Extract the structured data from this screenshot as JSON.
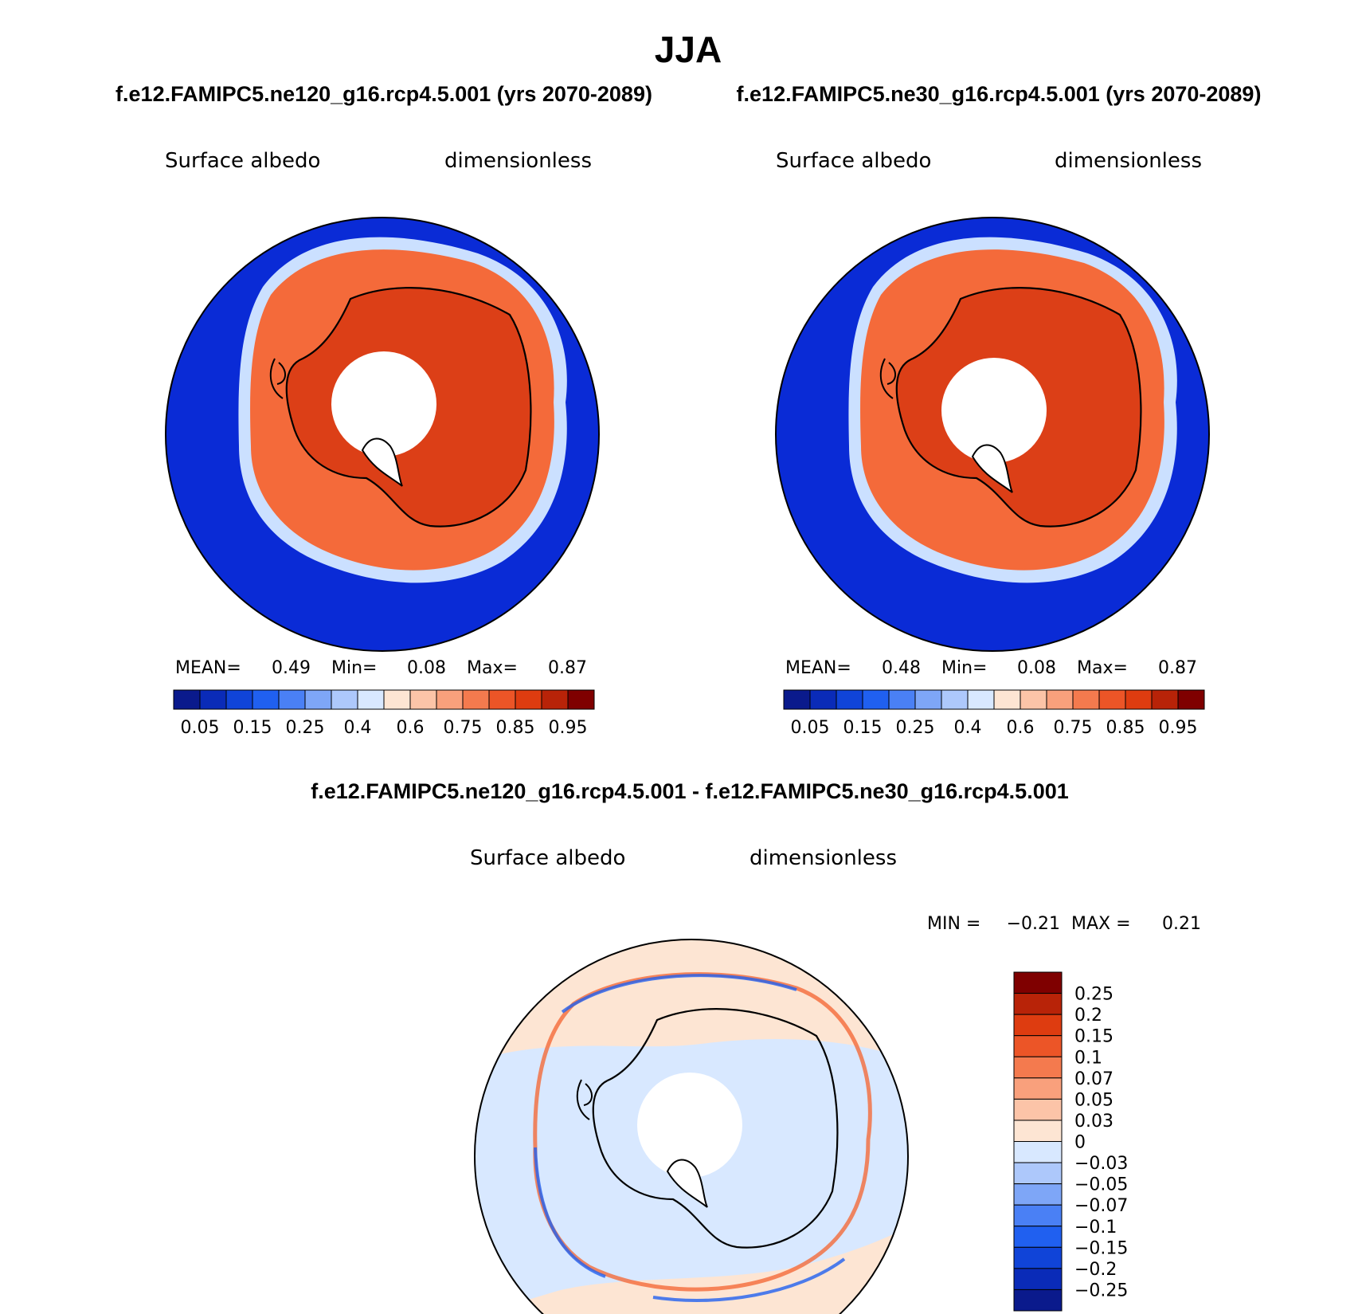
{
  "title": "JJA",
  "left_header": "f.e12.FAMIPC5.ne120_g16.rcp4.5.001 (yrs 2070-2089)",
  "right_header": "f.e12.FAMIPC5.ne30_g16.rcp4.5.001 (yrs 2070-2089)",
  "diff_header": "f.e12.FAMIPC5.ne120_g16.rcp4.5.001 - f.e12.FAMIPC5.ne30_g16.rcp4.5.001",
  "variable": "Surface albedo",
  "units": "dimensionless",
  "colors": {
    "ocean": "#0a2bd6",
    "ice_edge": "#cbe0ff",
    "sea_ice": "#f46a3a",
    "continent": "#dc3f17",
    "diff_bg": "#d8e8ff",
    "diff_pos": "#fde5d3"
  },
  "chart_data": [
    {
      "type": "heatmap",
      "panel": "ne120",
      "projection": "south-polar-stereographic",
      "stats": {
        "mean_label": "MEAN=",
        "mean": "0.49",
        "min_label": "Min=",
        "min": "0.08",
        "max_label": "Max=",
        "max": "0.87"
      },
      "colorbar_colors": [
        "#0a1a8c",
        "#0a2bb8",
        "#1044d8",
        "#2060f0",
        "#4a80f5",
        "#7ea6f7",
        "#adc8fb",
        "#d8e8ff",
        "#fde5d3",
        "#fcc4a8",
        "#f9a07c",
        "#f47a4e",
        "#ec5527",
        "#de3c10",
        "#b82308",
        "#7f0000"
      ],
      "colorbar_labels": [
        "0.05",
        "0.15",
        "0.25",
        "0.4",
        "0.6",
        "0.75",
        "0.85",
        "0.95"
      ]
    },
    {
      "type": "heatmap",
      "panel": "ne30",
      "projection": "south-polar-stereographic",
      "stats": {
        "mean_label": "MEAN=",
        "mean": "0.48",
        "min_label": "Min=",
        "min": "0.08",
        "max_label": "Max=",
        "max": "0.87"
      },
      "colorbar_colors": [
        "#0a1a8c",
        "#0a2bb8",
        "#1044d8",
        "#2060f0",
        "#4a80f5",
        "#7ea6f7",
        "#adc8fb",
        "#d8e8ff",
        "#fde5d3",
        "#fcc4a8",
        "#f9a07c",
        "#f47a4e",
        "#ec5527",
        "#de3c10",
        "#b82308",
        "#7f0000"
      ],
      "colorbar_labels": [
        "0.05",
        "0.15",
        "0.25",
        "0.4",
        "0.6",
        "0.75",
        "0.85",
        "0.95"
      ]
    },
    {
      "type": "heatmap",
      "panel": "difference",
      "projection": "south-polar-stereographic",
      "stats": {
        "min_label": "MIN =",
        "min": "−0.21",
        "max_label": "MAX =",
        "max": "0.21"
      },
      "colorbar_colors": [
        "#7f0000",
        "#b82308",
        "#de3c10",
        "#ec5527",
        "#f47a4e",
        "#f9a07c",
        "#fcc4a8",
        "#fde5d3",
        "#d8e8ff",
        "#adc8fb",
        "#7ea6f7",
        "#4a80f5",
        "#2060f0",
        "#1044d8",
        "#0a2bb8",
        "#0a1a8c"
      ],
      "colorbar_labels": [
        "0.25",
        "0.2",
        "0.15",
        "0.1",
        "0.07",
        "0.05",
        "0.03",
        "0",
        "−0.03",
        "−0.05",
        "−0.07",
        "−0.1",
        "−0.15",
        "−0.2",
        "−0.25"
      ]
    }
  ]
}
